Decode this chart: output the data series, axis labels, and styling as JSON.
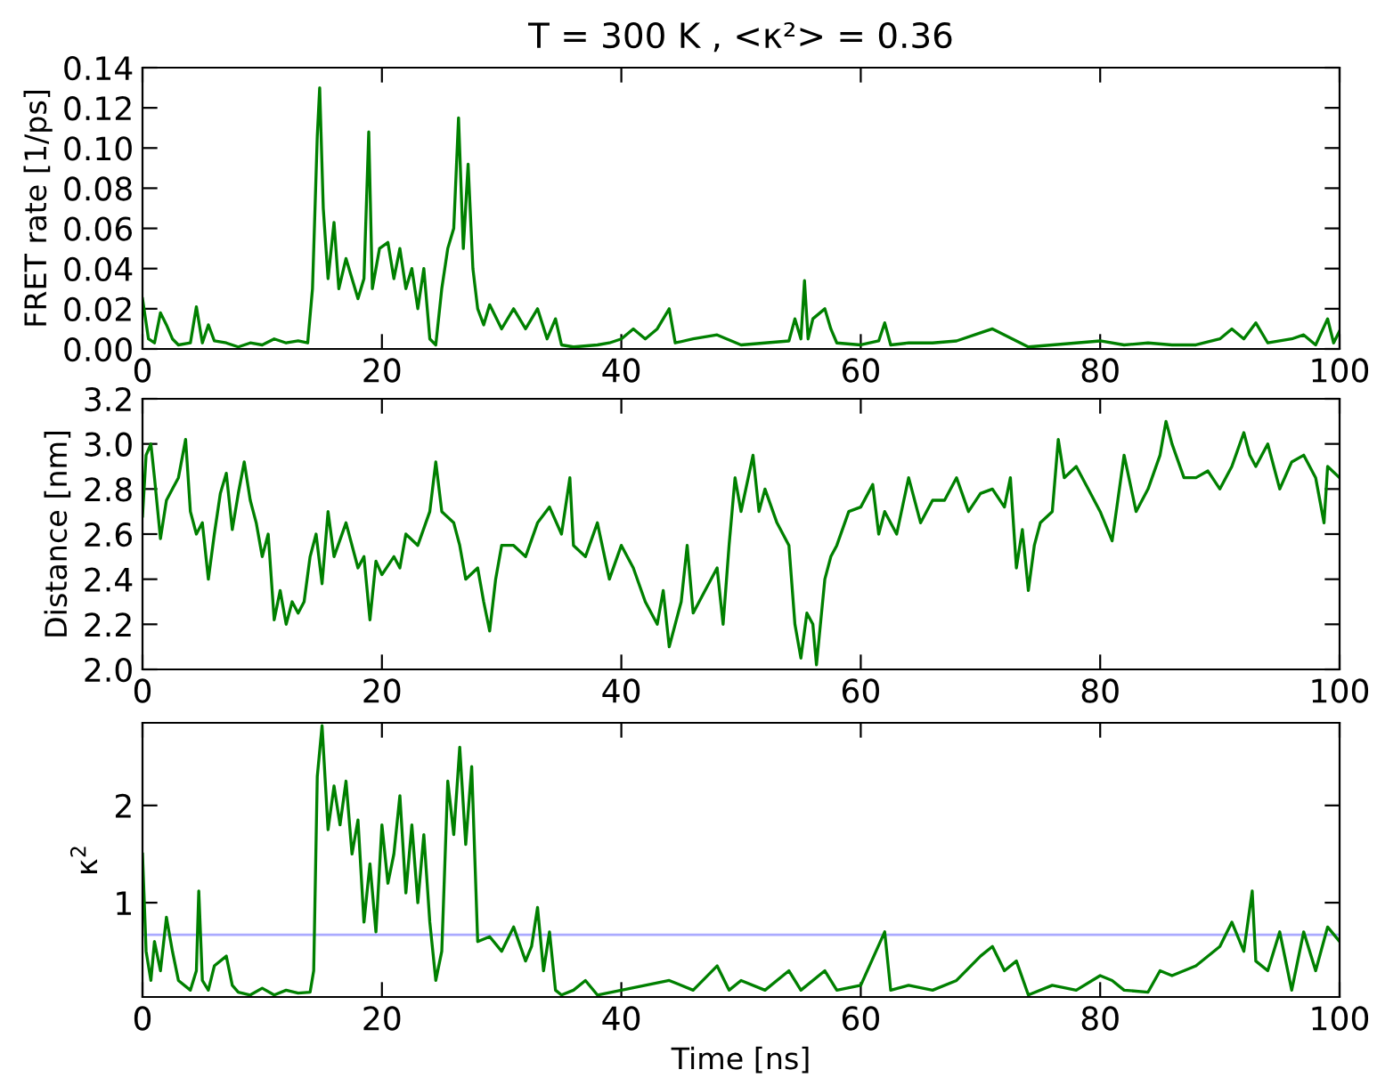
{
  "chart_data": [
    {
      "type": "line",
      "title": "T = 300 K , <κ²> = 0.36",
      "ylabel": "FRET rate [1/ps]",
      "xlim": [
        0,
        100
      ],
      "ylim": [
        0,
        0.14
      ],
      "xticks": [
        0,
        20,
        40,
        60,
        80,
        100
      ],
      "yticks": [
        {
          "value": 0,
          "label": "0.00"
        },
        0.02,
        0.04,
        0.06,
        0.08,
        {
          "value": 0.1,
          "label": "0.10"
        },
        0.12,
        0.14
      ],
      "grid": false,
      "line_style": "solid",
      "series": [
        {
          "color": "#008000",
          "x": [
            0,
            0.5,
            1,
            1.5,
            2,
            2.5,
            3,
            4,
            4.5,
            5,
            5.5,
            6,
            7,
            8,
            9,
            10,
            11,
            12,
            13,
            13.8,
            14.2,
            14.6,
            14.8,
            15.1,
            15.5,
            16,
            16.4,
            17,
            17.5,
            18,
            18.5,
            18.9,
            19.2,
            19.8,
            20.5,
            21,
            21.5,
            22,
            22.5,
            23,
            23.5,
            24,
            24.5,
            25,
            25.5,
            26,
            26.4,
            26.8,
            27.2,
            27.6,
            28,
            28.5,
            29,
            30,
            31,
            32,
            33,
            33.8,
            34.5,
            35,
            36,
            38,
            39,
            40,
            41,
            42,
            43,
            44,
            44.5,
            46,
            48,
            50,
            52,
            54,
            54.5,
            55,
            55.3,
            55.6,
            56,
            57,
            57.5,
            58,
            60,
            61.5,
            62,
            62.5,
            64,
            66,
            68,
            70,
            71,
            72,
            73,
            74,
            76,
            78,
            80,
            82,
            84,
            86,
            88,
            90,
            91,
            92,
            93,
            94,
            96,
            97,
            98,
            99,
            99.5,
            100
          ],
          "values": [
            0.025,
            0.005,
            0.003,
            0.018,
            0.012,
            0.005,
            0.002,
            0.003,
            0.021,
            0.003,
            0.012,
            0.004,
            0.003,
            0.001,
            0.003,
            0.002,
            0.005,
            0.003,
            0.004,
            0.003,
            0.03,
            0.106,
            0.13,
            0.07,
            0.035,
            0.063,
            0.03,
            0.045,
            0.035,
            0.025,
            0.035,
            0.108,
            0.03,
            0.05,
            0.053,
            0.035,
            0.05,
            0.03,
            0.04,
            0.02,
            0.04,
            0.005,
            0.002,
            0.03,
            0.05,
            0.06,
            0.115,
            0.05,
            0.092,
            0.04,
            0.02,
            0.012,
            0.022,
            0.01,
            0.02,
            0.01,
            0.02,
            0.005,
            0.015,
            0.002,
            0.001,
            0.002,
            0.003,
            0.005,
            0.01,
            0.005,
            0.01,
            0.02,
            0.003,
            0.005,
            0.007,
            0.002,
            0.003,
            0.004,
            0.015,
            0.005,
            0.034,
            0.005,
            0.015,
            0.02,
            0.01,
            0.003,
            0.002,
            0.004,
            0.013,
            0.002,
            0.003,
            0.003,
            0.004,
            0.008,
            0.01,
            0.007,
            0.004,
            0.001,
            0.002,
            0.003,
            0.004,
            0.002,
            0.003,
            0.002,
            0.002,
            0.005,
            0.01,
            0.005,
            0.013,
            0.003,
            0.005,
            0.007,
            0.002,
            0.015,
            0.003,
            0.009
          ]
        }
      ]
    },
    {
      "type": "line",
      "ylabel": "Distance [nm]",
      "xlim": [
        0,
        100
      ],
      "ylim": [
        2.0,
        3.2
      ],
      "xticks": [
        0,
        20,
        40,
        60,
        80,
        100
      ],
      "yticks": [
        {
          "value": 2.0,
          "label": "2.0"
        },
        2.2,
        2.4,
        2.6,
        2.8,
        {
          "value": 3.0,
          "label": "3.0"
        },
        3.2
      ],
      "grid": false,
      "line_style": "solid",
      "series": [
        {
          "color": "#008000",
          "x": [
            0,
            0.3,
            0.7,
            1,
            1.5,
            2,
            2.5,
            3,
            3.6,
            4,
            4.5,
            5,
            5.5,
            6,
            6.5,
            7,
            7.5,
            8,
            8.5,
            9,
            9.5,
            10,
            10.5,
            11,
            11.5,
            12,
            12.5,
            13,
            13.5,
            14,
            14.5,
            15,
            15.5,
            16,
            17,
            18,
            18.5,
            19,
            19.5,
            20,
            21,
            21.5,
            22,
            23,
            24,
            24.5,
            25,
            26,
            26.5,
            27,
            28,
            28.5,
            29,
            29.5,
            30,
            31,
            32,
            33,
            34,
            35,
            35.7,
            36,
            37,
            38,
            39,
            40,
            41,
            42,
            43,
            43.5,
            44,
            45,
            45.5,
            46,
            47,
            48,
            48.5,
            49,
            49.5,
            50,
            51,
            51.5,
            52,
            53,
            54,
            54.5,
            55,
            55.5,
            56,
            56.3,
            57,
            57.5,
            58,
            59,
            60,
            61,
            61.5,
            62,
            63,
            64,
            65,
            66,
            67,
            68,
            69,
            70,
            71,
            72,
            72.5,
            73,
            73.5,
            74,
            74.5,
            75,
            76,
            76.5,
            77,
            78,
            79,
            80,
            81,
            82,
            83,
            84,
            85,
            85.5,
            86,
            87,
            88,
            89,
            90,
            91,
            92,
            92.5,
            93,
            94,
            95,
            96,
            97,
            98,
            98.7,
            99,
            100
          ],
          "values": [
            2.68,
            2.95,
            3.0,
            2.85,
            2.58,
            2.75,
            2.8,
            2.85,
            3.02,
            2.7,
            2.6,
            2.65,
            2.4,
            2.6,
            2.78,
            2.87,
            2.62,
            2.78,
            2.92,
            2.75,
            2.65,
            2.5,
            2.6,
            2.22,
            2.35,
            2.2,
            2.3,
            2.25,
            2.3,
            2.5,
            2.6,
            2.38,
            2.7,
            2.5,
            2.65,
            2.45,
            2.5,
            2.22,
            2.48,
            2.42,
            2.5,
            2.45,
            2.6,
            2.55,
            2.7,
            2.92,
            2.7,
            2.65,
            2.55,
            2.4,
            2.45,
            2.3,
            2.17,
            2.4,
            2.55,
            2.55,
            2.5,
            2.65,
            2.72,
            2.6,
            2.85,
            2.55,
            2.5,
            2.65,
            2.4,
            2.55,
            2.45,
            2.3,
            2.2,
            2.35,
            2.1,
            2.3,
            2.55,
            2.25,
            2.35,
            2.45,
            2.2,
            2.55,
            2.85,
            2.7,
            2.95,
            2.7,
            2.8,
            2.65,
            2.55,
            2.2,
            2.05,
            2.25,
            2.2,
            2.02,
            2.4,
            2.5,
            2.55,
            2.7,
            2.72,
            2.82,
            2.6,
            2.7,
            2.6,
            2.85,
            2.65,
            2.75,
            2.75,
            2.85,
            2.7,
            2.78,
            2.8,
            2.72,
            2.85,
            2.45,
            2.62,
            2.35,
            2.55,
            2.65,
            2.7,
            3.02,
            2.85,
            2.9,
            2.8,
            2.7,
            2.57,
            2.95,
            2.7,
            2.8,
            2.95,
            3.1,
            3.0,
            2.85,
            2.85,
            2.88,
            2.8,
            2.9,
            3.05,
            2.95,
            2.9,
            3.0,
            2.8,
            2.92,
            2.95,
            2.85,
            2.65,
            2.9,
            2.85
          ]
        }
      ]
    },
    {
      "type": "line",
      "ylabel": "κ$^{2}$",
      "xlabel": "Time [ns]",
      "xlim": [
        0,
        100
      ],
      "ylim": [
        0.03,
        2.85
      ],
      "xticks": [
        0,
        20,
        40,
        60,
        80,
        100
      ],
      "yticks": [
        1,
        2
      ],
      "grid": false,
      "line_style": "solid",
      "ref_lines": [
        {
          "axis": "y",
          "value": 0.67,
          "color": "#aaaaff"
        }
      ],
      "series": [
        {
          "color": "#008000",
          "x": [
            0,
            0.3,
            0.7,
            1,
            1.5,
            2,
            2.5,
            3,
            4,
            4.5,
            4.7,
            5,
            5.5,
            6,
            7,
            7.5,
            8,
            9,
            10,
            11,
            12,
            13,
            14,
            14.3,
            14.6,
            15,
            15.5,
            16,
            16.5,
            17,
            17.5,
            18,
            18.5,
            19,
            19.5,
            20,
            20.5,
            21,
            21.5,
            22,
            22.5,
            23,
            23.5,
            24,
            24.5,
            25,
            25.5,
            26,
            26.5,
            27,
            27.5,
            28,
            29,
            30,
            31,
            32,
            32.5,
            33,
            33.5,
            34,
            34.5,
            35,
            36,
            37,
            38,
            40,
            42,
            44,
            46,
            48,
            49,
            50,
            52,
            54,
            55,
            57,
            58,
            60,
            62,
            62.5,
            64,
            66,
            68,
            70,
            71,
            72,
            73,
            74,
            76,
            78,
            80,
            81,
            82,
            84,
            85,
            86,
            88,
            90,
            91,
            92,
            92.7,
            93,
            94,
            95,
            96,
            97,
            98,
            99,
            100
          ],
          "values": [
            1.5,
            0.5,
            0.2,
            0.6,
            0.3,
            0.85,
            0.5,
            0.2,
            0.1,
            0.3,
            1.12,
            0.2,
            0.1,
            0.35,
            0.45,
            0.15,
            0.08,
            0.05,
            0.12,
            0.05,
            0.1,
            0.07,
            0.08,
            0.3,
            2.3,
            2.82,
            1.75,
            2.2,
            1.8,
            2.25,
            1.5,
            1.85,
            0.8,
            1.4,
            0.7,
            1.8,
            1.2,
            1.5,
            2.1,
            1.1,
            1.8,
            1.0,
            1.7,
            0.8,
            0.2,
            0.5,
            2.25,
            1.7,
            2.6,
            1.6,
            2.4,
            0.6,
            0.65,
            0.5,
            0.75,
            0.4,
            0.55,
            0.95,
            0.3,
            0.7,
            0.1,
            0.05,
            0.1,
            0.2,
            0.05,
            0.1,
            0.15,
            0.2,
            0.1,
            0.35,
            0.1,
            0.2,
            0.1,
            0.3,
            0.1,
            0.3,
            0.1,
            0.15,
            0.7,
            0.1,
            0.15,
            0.1,
            0.2,
            0.45,
            0.55,
            0.3,
            0.4,
            0.05,
            0.15,
            0.1,
            0.25,
            0.2,
            0.1,
            0.08,
            0.3,
            0.25,
            0.35,
            0.55,
            0.8,
            0.5,
            1.12,
            0.4,
            0.3,
            0.7,
            0.1,
            0.7,
            0.3,
            0.75,
            0.6
          ]
        }
      ]
    }
  ]
}
